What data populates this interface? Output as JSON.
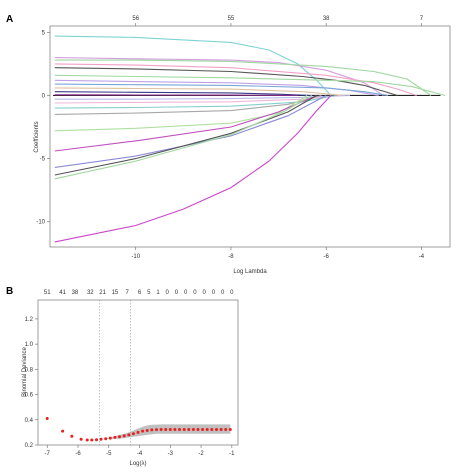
{
  "panels": {
    "a": {
      "label": "A",
      "xlabel": "Log Lambda",
      "ylabel": "Coefficients",
      "x_ticks": [
        "-10",
        "-8",
        "-6",
        "-4"
      ],
      "y_ticks": [
        "5",
        "0",
        "-5",
        "-10"
      ],
      "top_ticks": [
        "56",
        "55",
        "38",
        "7"
      ]
    },
    "b": {
      "label": "B",
      "xlabel": "Log(λ)",
      "ylabel": "Binomial Deviance",
      "x_ticks": [
        "-7",
        "-6",
        "-5",
        "-4",
        "-3",
        "-2",
        "-1"
      ],
      "y_ticks": [
        "0.2",
        "0.4",
        "0.6",
        "0.8",
        "1.0",
        "1.2"
      ],
      "top_ticks": [
        "51",
        "41",
        "38",
        "32",
        "21",
        "15",
        "7",
        "6",
        "5",
        "1",
        "0",
        "0",
        "0",
        "0",
        "0",
        "0",
        "0",
        "0"
      ]
    }
  },
  "chart_data": [
    {
      "type": "line",
      "panel": "A",
      "xlabel": "Log Lambda",
      "ylabel": "Coefficients",
      "xlim": [
        -11.8,
        -3.4
      ],
      "ylim": [
        -12,
        5.5
      ],
      "x_tick_values": [
        -10,
        -8,
        -6,
        -4
      ],
      "y_tick_values": [
        5,
        0,
        -5,
        -10
      ],
      "top_tick_positions": [
        -10,
        -8,
        -6,
        -4
      ],
      "top_tick_labels": [
        "56",
        "55",
        "38",
        "7"
      ],
      "grid": false,
      "series": [
        {
          "color": "#7fd3d3",
          "x": [
            -11.7,
            -10,
            -8,
            -7.2,
            -6.6,
            -6.2,
            -5.9
          ],
          "y": [
            4.7,
            4.6,
            4.2,
            3.6,
            2.5,
            1.2,
            0
          ]
        },
        {
          "color": "#d4a0e0",
          "x": [
            -11.7,
            -10,
            -8,
            -7,
            -6,
            -5.2,
            -4.8
          ],
          "y": [
            3.0,
            2.9,
            2.8,
            2.6,
            2.0,
            1.0,
            0
          ]
        },
        {
          "color": "#9fd69f",
          "x": [
            -11.7,
            -10,
            -8,
            -6,
            -5,
            -4.3,
            -3.8
          ],
          "y": [
            2.8,
            2.8,
            2.7,
            2.3,
            1.9,
            1.3,
            0
          ]
        },
        {
          "color": "#555555",
          "x": [
            -11.7,
            -10,
            -8,
            -6.5,
            -5.8,
            -5.2,
            -4.5
          ],
          "y": [
            2.2,
            2.1,
            1.9,
            1.5,
            1.2,
            0.8,
            0
          ]
        },
        {
          "color": "#f2a0c8",
          "x": [
            -11.7,
            -10,
            -8,
            -6,
            -5,
            -4.5,
            -4.1
          ],
          "y": [
            2.5,
            2.4,
            2.2,
            1.6,
            1.0,
            0.5,
            0
          ]
        },
        {
          "color": "#a0d8a0",
          "x": [
            -11.7,
            -10,
            -8,
            -6,
            -5,
            -4.2,
            -3.5
          ],
          "y": [
            1.6,
            1.5,
            1.4,
            1.2,
            1.1,
            0.7,
            0
          ]
        },
        {
          "color": "#c0a0e8",
          "x": [
            -11.7,
            -10,
            -8,
            -6.5,
            -5.5,
            -4.9
          ],
          "y": [
            1.2,
            1.1,
            1.0,
            0.8,
            0.4,
            0
          ]
        },
        {
          "color": "#7aa7d8",
          "x": [
            -11.7,
            -10,
            -8,
            -6,
            -5.2,
            -4.7
          ],
          "y": [
            0.9,
            0.85,
            0.8,
            0.6,
            0.3,
            0
          ]
        },
        {
          "color": "#e0c0a0",
          "x": [
            -11.7,
            -10,
            -8,
            -6.5,
            -5.6
          ],
          "y": [
            0.6,
            0.55,
            0.5,
            0.3,
            0
          ]
        },
        {
          "color": "#3a3a8a",
          "x": [
            -11.7,
            -10,
            -8,
            -7,
            -6.3
          ],
          "y": [
            0.3,
            0.25,
            0.2,
            0.1,
            0
          ]
        },
        {
          "color": "#8a2a8a",
          "x": [
            -11.7,
            -10,
            -8,
            -6.6
          ],
          "y": [
            0.05,
            0.04,
            0.03,
            0
          ]
        },
        {
          "color": "#b9b9e8",
          "x": [
            -11.7,
            -10,
            -8,
            -6.5,
            -5.5
          ],
          "y": [
            -0.3,
            -0.3,
            -0.25,
            -0.15,
            0
          ]
        },
        {
          "color": "#f0b8d8",
          "x": [
            -11.7,
            -10,
            -8,
            -6.5,
            -5.7
          ],
          "y": [
            -0.6,
            -0.55,
            -0.5,
            -0.3,
            0
          ]
        },
        {
          "color": "#88cfcf",
          "x": [
            -11.7,
            -10,
            -8,
            -6.5,
            -5.8
          ],
          "y": [
            -1.0,
            -0.95,
            -0.85,
            -0.5,
            0
          ]
        },
        {
          "color": "#a8a8a8",
          "x": [
            -11.7,
            -10,
            -8,
            -6.8,
            -6.1
          ],
          "y": [
            -1.5,
            -1.4,
            -1.2,
            -0.7,
            0
          ]
        },
        {
          "color": "#b0e0a0",
          "x": [
            -11.7,
            -10,
            -8,
            -7,
            -6.4
          ],
          "y": [
            -2.8,
            -2.6,
            -2.2,
            -1.4,
            0
          ]
        },
        {
          "color": "#c050c0",
          "x": [
            -11.7,
            -10,
            -8,
            -7,
            -6.2
          ],
          "y": [
            -4.4,
            -3.6,
            -2.5,
            -1.3,
            0
          ]
        },
        {
          "color": "#8a8ad8",
          "x": [
            -11.7,
            -10,
            -8,
            -6.8,
            -6.0
          ],
          "y": [
            -5.7,
            -4.8,
            -3.2,
            -1.6,
            0
          ]
        },
        {
          "color": "#555555",
          "x": [
            -11.7,
            -10,
            -8,
            -6.8,
            -6.2
          ],
          "y": [
            -6.3,
            -5.0,
            -3.0,
            -1.3,
            0
          ]
        },
        {
          "color": "#a0d8a0",
          "x": [
            -11.7,
            -10,
            -8,
            -6.9,
            -6.3
          ],
          "y": [
            -6.6,
            -5.2,
            -3.1,
            -1.3,
            0
          ]
        },
        {
          "color": "#cc44cc",
          "x": [
            -11.7,
            -10,
            -9,
            -8,
            -7.2,
            -6.6,
            -6.2,
            -5.9
          ],
          "y": [
            -11.6,
            -10.3,
            -9.0,
            -7.3,
            -5.2,
            -3.0,
            -1.2,
            0
          ]
        }
      ]
    },
    {
      "type": "scatter",
      "panel": "B",
      "xlabel": "Log(λ)",
      "ylabel": "Binomial Deviance",
      "xlim": [
        -7.3,
        -0.8
      ],
      "ylim": [
        0.2,
        1.35
      ],
      "x_tick_values": [
        -7,
        -6,
        -5,
        -4,
        -3,
        -2,
        -1
      ],
      "y_tick_values": [
        0.2,
        0.4,
        0.6,
        0.8,
        1.0,
        1.2
      ],
      "grid": false,
      "vlines": [
        -5.3,
        -4.3
      ],
      "top_tick_positions": [
        -7,
        -6.5,
        -6.1,
        -5.6,
        -5.2,
        -4.8,
        -4.4,
        -4.0,
        -3.7,
        -3.4,
        -3.1,
        -2.8,
        -2.5,
        -2.2,
        -1.9,
        -1.6,
        -1.3,
        -1.0
      ],
      "top_tick_labels": [
        "51",
        "41",
        "38",
        "32",
        "21",
        "15",
        "7",
        "6",
        "5",
        "1",
        "0",
        "0",
        "0",
        "0",
        "0",
        "0",
        "0",
        "0"
      ],
      "points": {
        "x": [
          -7.0,
          -6.5,
          -6.2,
          -5.9,
          -5.7,
          -5.55,
          -5.4,
          -5.25,
          -5.1,
          -4.95,
          -4.8,
          -4.65,
          -4.5,
          -4.35,
          -4.2,
          -4.05,
          -3.9,
          -3.75,
          -3.6,
          -3.45,
          -3.3,
          -3.15,
          -3.0,
          -2.85,
          -2.7,
          -2.55,
          -2.4,
          -2.25,
          -2.1,
          -1.95,
          -1.8,
          -1.65,
          -1.5,
          -1.35,
          -1.2,
          -1.05
        ],
        "y": [
          0.41,
          0.31,
          0.27,
          0.245,
          0.24,
          0.24,
          0.242,
          0.245,
          0.25,
          0.255,
          0.26,
          0.265,
          0.272,
          0.28,
          0.29,
          0.3,
          0.31,
          0.315,
          0.32,
          0.322,
          0.323,
          0.323,
          0.323,
          0.323,
          0.323,
          0.323,
          0.323,
          0.323,
          0.323,
          0.323,
          0.323,
          0.323,
          0.323,
          0.323,
          0.323,
          0.323
        ],
        "err_low": [
          0.41,
          0.31,
          0.27,
          0.245,
          0.24,
          0.24,
          0.242,
          0.245,
          0.25,
          0.25,
          0.25,
          0.25,
          0.255,
          0.26,
          0.265,
          0.27,
          0.275,
          0.28,
          0.285,
          0.29,
          0.29,
          0.29,
          0.29,
          0.29,
          0.29,
          0.29,
          0.29,
          0.29,
          0.29,
          0.29,
          0.29,
          0.29,
          0.29,
          0.29,
          0.29,
          0.29
        ],
        "err_high": [
          0.41,
          0.31,
          0.27,
          0.245,
          0.24,
          0.24,
          0.242,
          0.245,
          0.25,
          0.26,
          0.27,
          0.28,
          0.29,
          0.3,
          0.315,
          0.33,
          0.345,
          0.355,
          0.36,
          0.362,
          0.363,
          0.363,
          0.363,
          0.363,
          0.363,
          0.363,
          0.363,
          0.363,
          0.363,
          0.363,
          0.363,
          0.363,
          0.363,
          0.363,
          0.363,
          0.363
        ]
      },
      "point_color": "#e8201e",
      "band_color": "#b0b0b0"
    }
  ]
}
